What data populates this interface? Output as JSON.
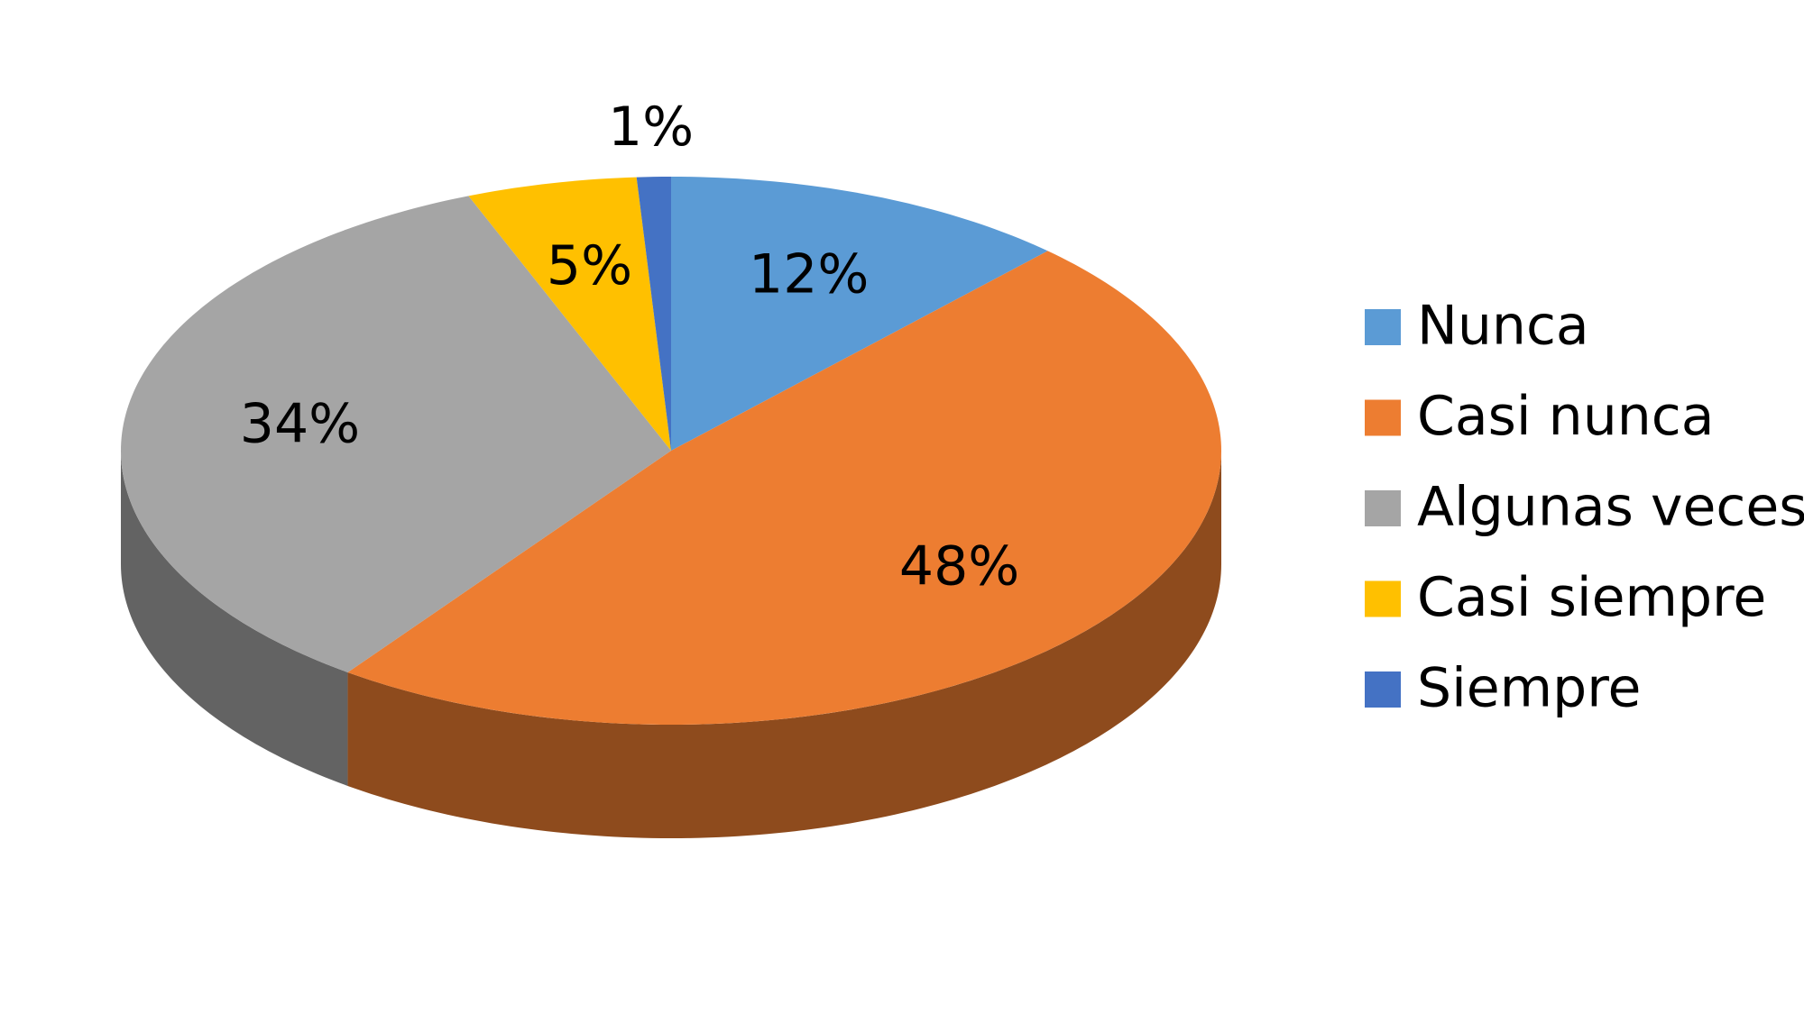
{
  "chart_data": {
    "type": "pie",
    "categories": [
      "Nunca",
      "Casi nunca",
      "Algunas veces",
      "Casi siempre",
      "Siempre"
    ],
    "values": [
      12,
      48,
      34,
      5,
      1
    ],
    "value_labels": [
      "12%",
      "48%",
      "34%",
      "5%",
      "1%"
    ],
    "colors": [
      "#5b9bd5",
      "#ed7d31",
      "#a5a5a5",
      "#ffc000",
      "#4472c4"
    ],
    "legend": "right"
  }
}
